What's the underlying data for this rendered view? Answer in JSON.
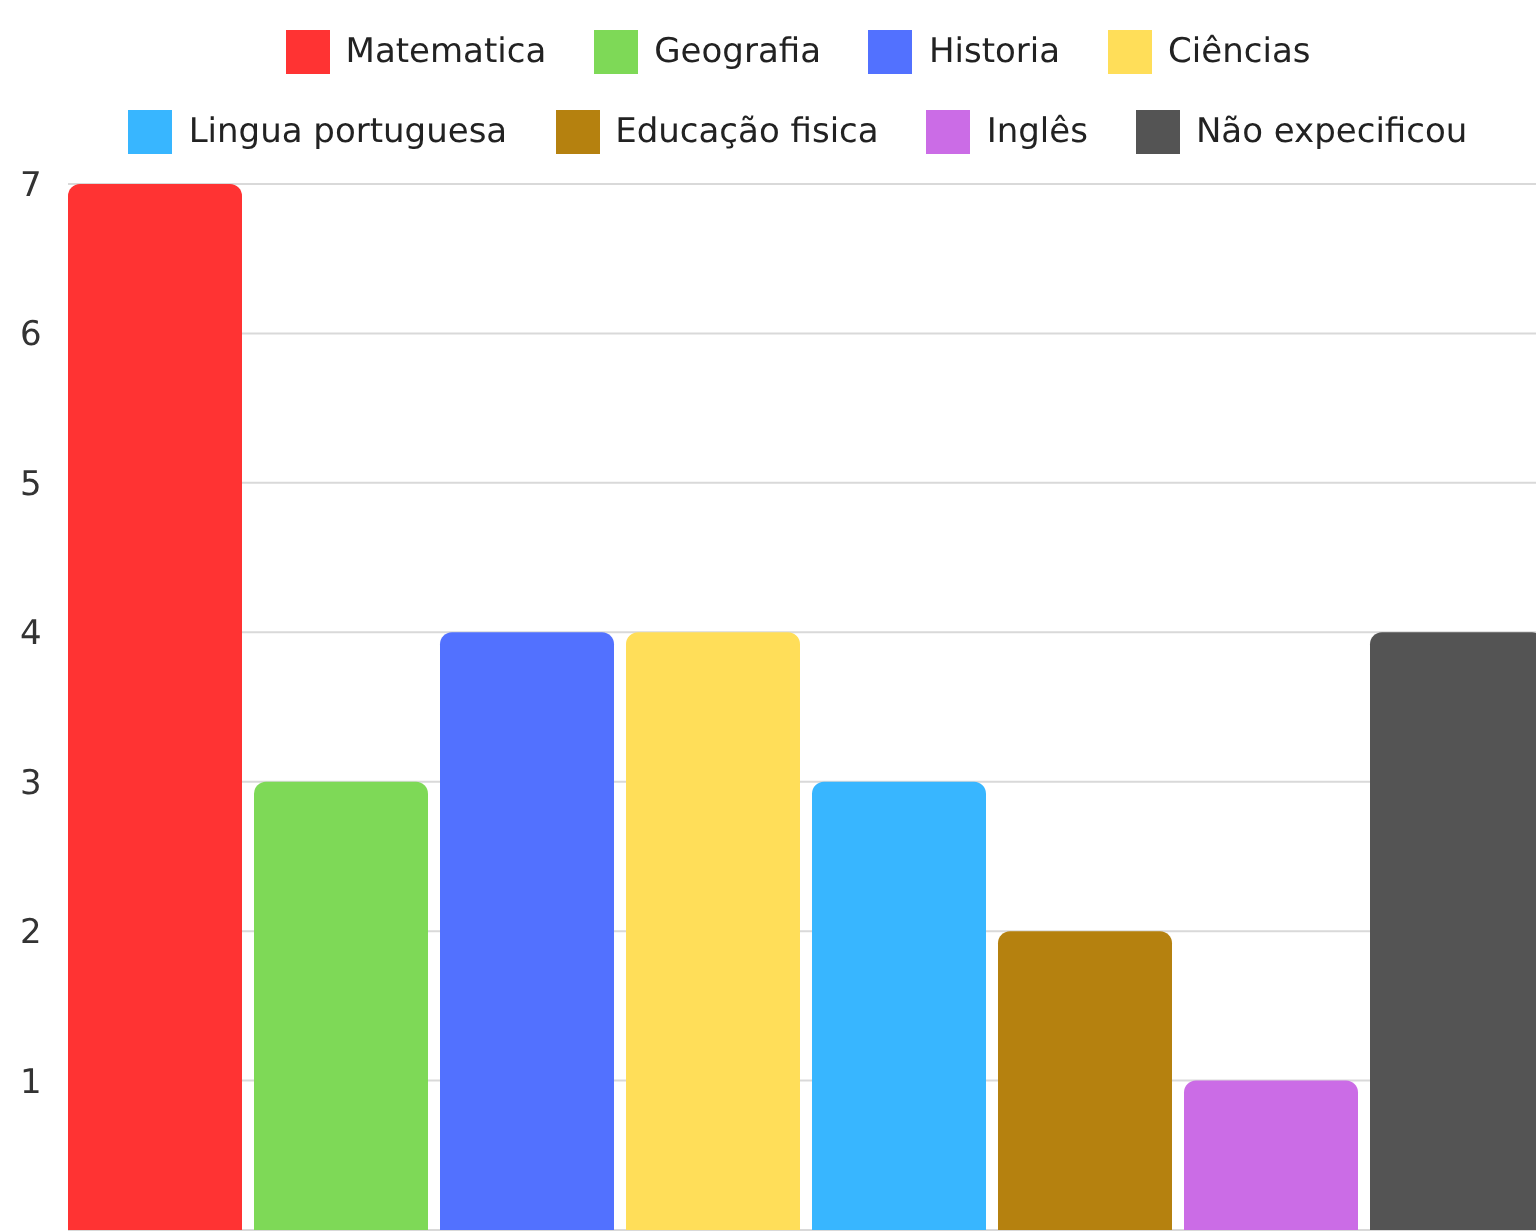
{
  "chart_data": {
    "type": "bar",
    "categories": [
      null
    ],
    "series": [
      {
        "name": "Matematica",
        "color": "#ff3333",
        "values": [
          7
        ]
      },
      {
        "name": "Geografia",
        "color": "#7ed957",
        "values": [
          3
        ]
      },
      {
        "name": "Historia",
        "color": "#5271ff",
        "values": [
          4
        ]
      },
      {
        "name": "Ciências",
        "color": "#ffde59",
        "values": [
          4
        ]
      },
      {
        "name": "Lingua portuguesa",
        "color": "#38b6ff",
        "values": [
          3
        ]
      },
      {
        "name": "Educação fisica",
        "color": "#b5810f",
        "values": [
          2
        ]
      },
      {
        "name": "Inglês",
        "color": "#cb6ce6",
        "values": [
          1
        ]
      },
      {
        "name": "Não expecificou",
        "color": "#545454",
        "values": [
          4
        ]
      }
    ],
    "ylim": [
      0,
      7
    ],
    "yticks": [
      1,
      2,
      3,
      4,
      5,
      6,
      7
    ],
    "grid": "y",
    "legend": "top"
  }
}
